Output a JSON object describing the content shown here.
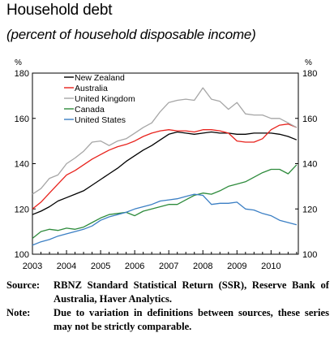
{
  "chart_data": {
    "type": "line",
    "title": "Household debt",
    "subtitle": "(percent of household disposable income)",
    "y_unit_left": "%",
    "y_unit_right": "%",
    "ylim": [
      100,
      180
    ],
    "yticks": [
      "100",
      "120",
      "140",
      "160",
      "180"
    ],
    "xlim": [
      2003,
      2010.8
    ],
    "xticks": [
      "2003",
      "2004",
      "2005",
      "2006",
      "2007",
      "2008",
      "2009",
      "2010"
    ],
    "legend_position": "top-left",
    "grid": false,
    "series": [
      {
        "name": "New Zealand",
        "color": "#000000",
        "points": [
          [
            2003,
            117.5
          ],
          [
            2003.25,
            119
          ],
          [
            2003.5,
            121
          ],
          [
            2003.75,
            123.5
          ],
          [
            2004,
            125
          ],
          [
            2004.25,
            126.5
          ],
          [
            2004.5,
            128
          ],
          [
            2004.75,
            130.5
          ],
          [
            2005,
            133
          ],
          [
            2005.25,
            135.5
          ],
          [
            2005.5,
            138
          ],
          [
            2005.75,
            141
          ],
          [
            2006,
            143.5
          ],
          [
            2006.25,
            146
          ],
          [
            2006.5,
            148
          ],
          [
            2006.75,
            150.5
          ],
          [
            2007,
            153
          ],
          [
            2007.25,
            154
          ],
          [
            2007.5,
            153.5
          ],
          [
            2007.75,
            153
          ],
          [
            2008,
            153.5
          ],
          [
            2008.25,
            154
          ],
          [
            2008.5,
            153.5
          ],
          [
            2008.75,
            153.5
          ],
          [
            2009,
            153
          ],
          [
            2009.25,
            153
          ],
          [
            2009.5,
            153.5
          ],
          [
            2009.75,
            153.5
          ],
          [
            2010,
            153.5
          ],
          [
            2010.25,
            153
          ],
          [
            2010.5,
            152
          ],
          [
            2010.75,
            150.5
          ]
        ]
      },
      {
        "name": "Australia",
        "color": "#e8221c",
        "points": [
          [
            2003,
            120
          ],
          [
            2003.25,
            123
          ],
          [
            2003.5,
            127
          ],
          [
            2003.75,
            131
          ],
          [
            2004,
            135
          ],
          [
            2004.25,
            137
          ],
          [
            2004.5,
            139.5
          ],
          [
            2004.75,
            142
          ],
          [
            2005,
            144
          ],
          [
            2005.25,
            146
          ],
          [
            2005.5,
            147.5
          ],
          [
            2005.75,
            148.5
          ],
          [
            2006,
            150
          ],
          [
            2006.25,
            152
          ],
          [
            2006.5,
            153.5
          ],
          [
            2006.75,
            154.5
          ],
          [
            2007,
            155
          ],
          [
            2007.25,
            154.5
          ],
          [
            2007.5,
            154.5
          ],
          [
            2007.75,
            154
          ],
          [
            2008,
            155
          ],
          [
            2008.25,
            155
          ],
          [
            2008.5,
            154.5
          ],
          [
            2008.75,
            153.5
          ],
          [
            2009,
            150
          ],
          [
            2009.25,
            149.5
          ],
          [
            2009.5,
            149.5
          ],
          [
            2009.75,
            151
          ],
          [
            2010,
            155
          ],
          [
            2010.25,
            157
          ],
          [
            2010.5,
            157.5
          ],
          [
            2010.75,
            156
          ]
        ]
      },
      {
        "name": "United Kingdom",
        "color": "#a6a6a6",
        "points": [
          [
            2003,
            126.5
          ],
          [
            2003.25,
            129
          ],
          [
            2003.5,
            133.5
          ],
          [
            2003.75,
            135
          ],
          [
            2004,
            140
          ],
          [
            2004.25,
            142.5
          ],
          [
            2004.5,
            145.5
          ],
          [
            2004.75,
            149.5
          ],
          [
            2005,
            150
          ],
          [
            2005.25,
            148
          ],
          [
            2005.5,
            150
          ],
          [
            2005.75,
            151
          ],
          [
            2006,
            153.5
          ],
          [
            2006.25,
            156
          ],
          [
            2006.5,
            158
          ],
          [
            2006.75,
            163
          ],
          [
            2007,
            167
          ],
          [
            2007.25,
            168
          ],
          [
            2007.5,
            168.5
          ],
          [
            2007.75,
            168
          ],
          [
            2008,
            173.5
          ],
          [
            2008.25,
            168.5
          ],
          [
            2008.5,
            167.5
          ],
          [
            2008.75,
            164
          ],
          [
            2009,
            167
          ],
          [
            2009.25,
            162
          ],
          [
            2009.5,
            161.5
          ],
          [
            2009.75,
            161.5
          ],
          [
            2010,
            160
          ],
          [
            2010.25,
            160
          ],
          [
            2010.5,
            158
          ],
          [
            2010.75,
            156
          ]
        ]
      },
      {
        "name": "Canada",
        "color": "#2e8b3c",
        "points": [
          [
            2003,
            107
          ],
          [
            2003.25,
            110
          ],
          [
            2003.5,
            111
          ],
          [
            2003.75,
            110.5
          ],
          [
            2004,
            111.5
          ],
          [
            2004.25,
            111
          ],
          [
            2004.5,
            112
          ],
          [
            2004.75,
            114
          ],
          [
            2005,
            116
          ],
          [
            2005.25,
            117.5
          ],
          [
            2005.5,
            118
          ],
          [
            2005.75,
            118.5
          ],
          [
            2006,
            117
          ],
          [
            2006.25,
            119
          ],
          [
            2006.5,
            120
          ],
          [
            2006.75,
            121
          ],
          [
            2007,
            122
          ],
          [
            2007.25,
            122
          ],
          [
            2007.5,
            124
          ],
          [
            2007.75,
            126
          ],
          [
            2008,
            127
          ],
          [
            2008.25,
            126.5
          ],
          [
            2008.5,
            128
          ],
          [
            2008.75,
            130
          ],
          [
            2009,
            131
          ],
          [
            2009.25,
            132
          ],
          [
            2009.5,
            134
          ],
          [
            2009.75,
            136
          ],
          [
            2010,
            137.5
          ],
          [
            2010.25,
            137.5
          ],
          [
            2010.5,
            135.5
          ],
          [
            2010.75,
            139.5
          ]
        ]
      },
      {
        "name": "United States",
        "color": "#3b7fc4",
        "points": [
          [
            2003,
            104
          ],
          [
            2003.25,
            105.5
          ],
          [
            2003.5,
            106.5
          ],
          [
            2003.75,
            108
          ],
          [
            2004,
            109
          ],
          [
            2004.25,
            110
          ],
          [
            2004.5,
            111
          ],
          [
            2004.75,
            112.5
          ],
          [
            2005,
            115
          ],
          [
            2005.25,
            116.5
          ],
          [
            2005.5,
            117.5
          ],
          [
            2005.75,
            118.5
          ],
          [
            2006,
            120
          ],
          [
            2006.25,
            121
          ],
          [
            2006.5,
            122
          ],
          [
            2006.75,
            123.5
          ],
          [
            2007,
            124
          ],
          [
            2007.25,
            124.5
          ],
          [
            2007.5,
            125.5
          ],
          [
            2007.75,
            126.5
          ],
          [
            2008,
            126
          ],
          [
            2008.25,
            122
          ],
          [
            2008.5,
            122.5
          ],
          [
            2008.75,
            122.5
          ],
          [
            2009,
            123
          ],
          [
            2009.25,
            120
          ],
          [
            2009.5,
            119.5
          ],
          [
            2009.75,
            118
          ],
          [
            2010,
            117
          ],
          [
            2010.25,
            115
          ],
          [
            2010.5,
            114
          ],
          [
            2010.75,
            113
          ]
        ]
      }
    ]
  },
  "notes": {
    "source_label": "Source:",
    "source_text": "RBNZ Standard Statistical Return (SSR), Reserve Bank of Australia, Haver Analytics.",
    "note_label": "Note:",
    "note_text": "Due to variation in definitions between sources, these series may not be strictly comparable."
  }
}
